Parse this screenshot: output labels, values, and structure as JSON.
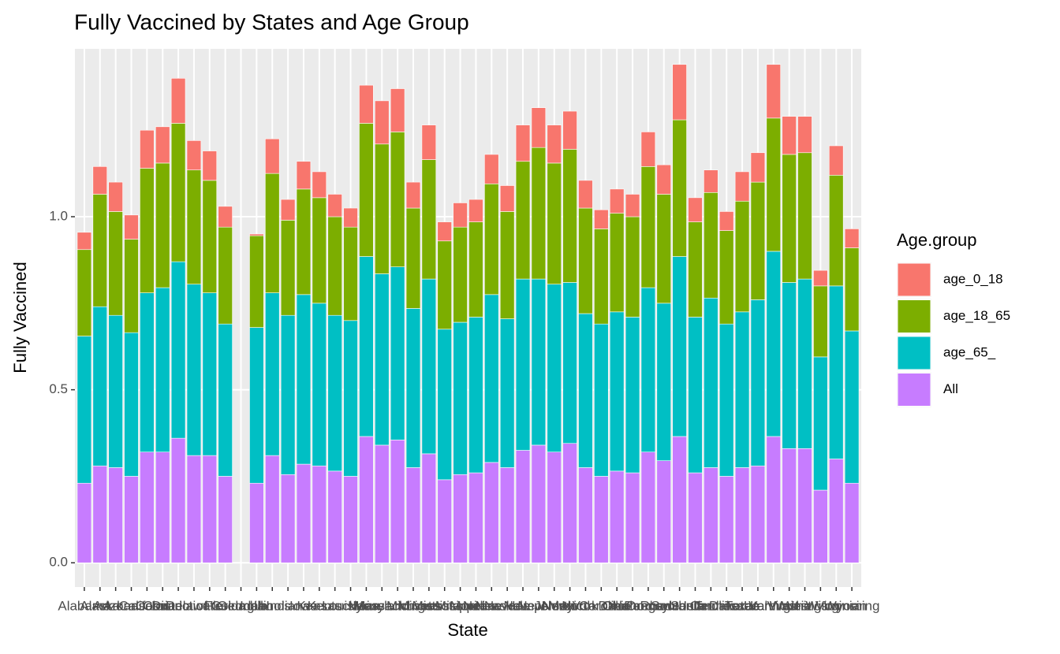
{
  "chart_data": {
    "type": "stacked_bar",
    "title": "Fully Vaccined by States and Age Group",
    "x_label": "State",
    "y_label": "Fully Vaccined",
    "legend_title": "Age.group",
    "legend_position": "right",
    "grid": true,
    "categories": [
      "Alabama",
      "Alaska",
      "Arizona",
      "Arkansas",
      "California",
      "Colorado",
      "Connecticut",
      "Delaware",
      "District of Columbia",
      "Florida",
      "Georgia",
      "Idaho",
      "Illinois",
      "Indiana",
      "Iowa",
      "Kansas",
      "Kentucky",
      "Louisiana",
      "Maine",
      "Maryland",
      "Massachusetts",
      "Michigan",
      "Minnesota",
      "Mississippi",
      "Missouri",
      "Montana",
      "Nebraska",
      "Nevada",
      "New Hampshire",
      "New Jersey",
      "New Mexico",
      "New York",
      "North Carolina",
      "North Dakota",
      "Ohio",
      "Oklahoma",
      "Oregon",
      "Pennsylvania",
      "Rhode Island",
      "South Carolina",
      "South Dakota",
      "Tennessee",
      "Texas",
      "Utah",
      "Vermont",
      "Virginia",
      "Washington",
      "West Virginia",
      "Wisconsin",
      "Wyoming"
    ],
    "series": [
      {
        "name": "age_0_18",
        "color": "#F8766D",
        "values": [
          0.05,
          0.08,
          0.085,
          0.07,
          0.11,
          0.105,
          0.13,
          0.085,
          0.085,
          0.06,
          null,
          0.005,
          0.1,
          0.06,
          0.08,
          0.075,
          0.065,
          0.055,
          0.11,
          0.125,
          0.125,
          0.075,
          0.1,
          0.055,
          0.07,
          0.065,
          0.085,
          0.075,
          0.105,
          0.115,
          0.11,
          0.11,
          0.08,
          0.055,
          0.07,
          0.065,
          0.1,
          0.085,
          0.16,
          0.07,
          0.065,
          0.055,
          0.085,
          0.085,
          0.155,
          0.11,
          0.105,
          0.045,
          0.085,
          0.055
        ]
      },
      {
        "name": "age_18_65",
        "color": "#7CAE00",
        "values": [
          0.25,
          0.325,
          0.3,
          0.27,
          0.36,
          0.36,
          0.4,
          0.33,
          0.325,
          0.28,
          null,
          0.265,
          0.345,
          0.275,
          0.305,
          0.305,
          0.285,
          0.27,
          0.385,
          0.375,
          0.39,
          0.29,
          0.345,
          0.255,
          0.275,
          0.275,
          0.32,
          0.31,
          0.34,
          0.38,
          0.35,
          0.385,
          0.305,
          0.275,
          0.285,
          0.29,
          0.35,
          0.315,
          0.395,
          0.275,
          0.305,
          0.27,
          0.32,
          0.34,
          0.385,
          0.37,
          0.365,
          0.205,
          0.32,
          0.24
        ]
      },
      {
        "name": "age_65_",
        "color": "#00BFC4",
        "values": [
          0.425,
          0.46,
          0.44,
          0.415,
          0.46,
          0.475,
          0.51,
          0.495,
          0.47,
          0.44,
          null,
          0.45,
          0.47,
          0.46,
          0.49,
          0.47,
          0.45,
          0.45,
          0.52,
          0.495,
          0.5,
          0.46,
          0.505,
          0.435,
          0.44,
          0.45,
          0.485,
          0.43,
          0.495,
          0.48,
          0.485,
          0.465,
          0.445,
          0.44,
          0.46,
          0.45,
          0.475,
          0.455,
          0.52,
          0.45,
          0.49,
          0.44,
          0.45,
          0.48,
          0.535,
          0.48,
          0.49,
          0.385,
          0.5,
          0.44
        ]
      },
      {
        "name": "All",
        "color": "#C77CFF",
        "values": [
          0.23,
          0.28,
          0.275,
          0.25,
          0.32,
          0.32,
          0.36,
          0.31,
          0.31,
          0.25,
          null,
          0.23,
          0.31,
          0.255,
          0.285,
          0.28,
          0.265,
          0.25,
          0.365,
          0.34,
          0.355,
          0.275,
          0.315,
          0.24,
          0.255,
          0.26,
          0.29,
          0.275,
          0.325,
          0.34,
          0.32,
          0.345,
          0.275,
          0.25,
          0.265,
          0.26,
          0.32,
          0.295,
          0.365,
          0.26,
          0.275,
          0.25,
          0.275,
          0.28,
          0.365,
          0.33,
          0.33,
          0.21,
          0.3,
          0.23
        ]
      }
    ],
    "ylim": [
      -0.07,
      1.485
    ],
    "yticks": [
      {
        "value": 0,
        "label": "0.0"
      },
      0.5,
      {
        "value": 1,
        "label": "1.0"
      }
    ]
  }
}
